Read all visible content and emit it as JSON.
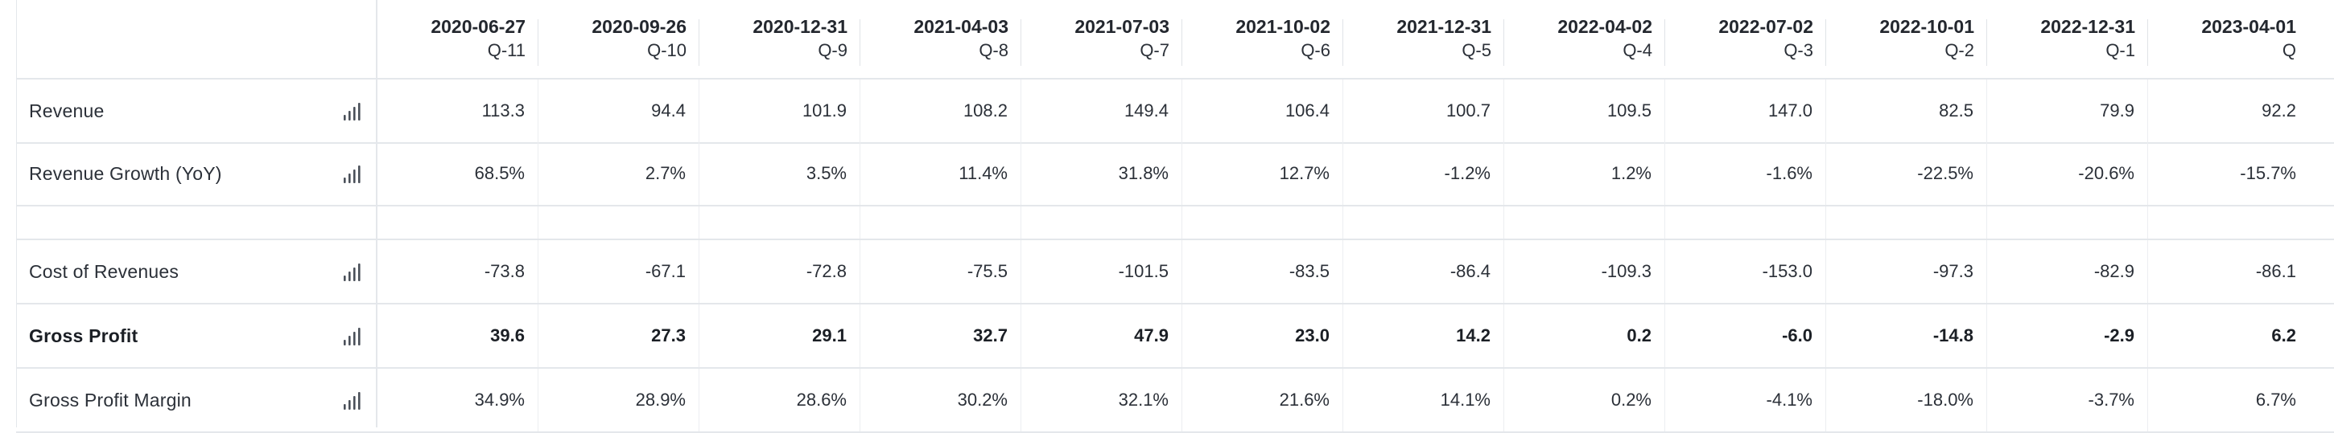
{
  "columns": [
    {
      "date": "2020-06-27",
      "quarter": "Q-11"
    },
    {
      "date": "2020-09-26",
      "quarter": "Q-10"
    },
    {
      "date": "2020-12-31",
      "quarter": "Q-9"
    },
    {
      "date": "2021-04-03",
      "quarter": "Q-8"
    },
    {
      "date": "2021-07-03",
      "quarter": "Q-7"
    },
    {
      "date": "2021-10-02",
      "quarter": "Q-6"
    },
    {
      "date": "2021-12-31",
      "quarter": "Q-5"
    },
    {
      "date": "2022-04-02",
      "quarter": "Q-4"
    },
    {
      "date": "2022-07-02",
      "quarter": "Q-3"
    },
    {
      "date": "2022-10-01",
      "quarter": "Q-2"
    },
    {
      "date": "2022-12-31",
      "quarter": "Q-1"
    },
    {
      "date": "2023-04-01",
      "quarter": "Q"
    }
  ],
  "rows": [
    {
      "label": "Revenue",
      "bold": false,
      "has_chart_icon": true,
      "values": [
        "113.3",
        "94.4",
        "101.9",
        "108.2",
        "149.4",
        "106.4",
        "100.7",
        "109.5",
        "147.0",
        "82.5",
        "79.9",
        "92.2"
      ]
    },
    {
      "label": "Revenue Growth (YoY)",
      "bold": false,
      "has_chart_icon": true,
      "values": [
        "68.5%",
        "2.7%",
        "3.5%",
        "11.4%",
        "31.8%",
        "12.7%",
        "-1.2%",
        "1.2%",
        "-1.6%",
        "-22.5%",
        "-20.6%",
        "-15.7%"
      ]
    },
    {
      "spacer": true
    },
    {
      "label": "Cost of Revenues",
      "bold": false,
      "has_chart_icon": true,
      "values": [
        "-73.8",
        "-67.1",
        "-72.8",
        "-75.5",
        "-101.5",
        "-83.5",
        "-86.4",
        "-109.3",
        "-153.0",
        "-97.3",
        "-82.9",
        "-86.1"
      ]
    },
    {
      "label": "Gross Profit",
      "bold": true,
      "has_chart_icon": true,
      "values": [
        "39.6",
        "27.3",
        "29.1",
        "32.7",
        "47.9",
        "23.0",
        "14.2",
        "0.2",
        "-6.0",
        "-14.8",
        "-2.9",
        "6.2"
      ]
    },
    {
      "label": "Gross Profit Margin",
      "bold": false,
      "has_chart_icon": true,
      "values": [
        "34.9%",
        "28.9%",
        "28.6%",
        "30.2%",
        "32.1%",
        "21.6%",
        "14.1%",
        "0.2%",
        "-4.1%",
        "-18.0%",
        "-3.7%",
        "6.7%"
      ]
    }
  ],
  "icons": {
    "row_chart": "bar-chart-icon"
  },
  "colors": {
    "grid_line": "#e4e7eb",
    "text": "#2b3038",
    "icon": "#4a5059"
  }
}
